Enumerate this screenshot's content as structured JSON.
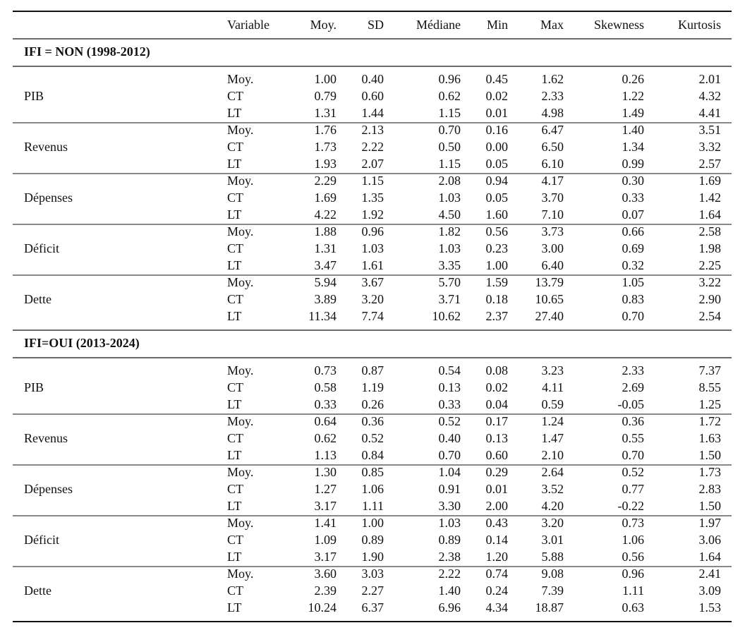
{
  "table": {
    "columns": [
      "Variable",
      "Moy.",
      "SD",
      "Médiane",
      "Min",
      "Max",
      "Skewness",
      "Kurtosis"
    ],
    "sections": [
      {
        "title": "IFI = NON (1998-2012)",
        "groups": [
          {
            "name": "PIB",
            "rows": [
              {
                "label": "Moy.",
                "values": [
                  "1.00",
                  "0.40",
                  "0.96",
                  "0.45",
                  "1.62",
                  "0.26",
                  "2.01"
                ]
              },
              {
                "label": "CT",
                "values": [
                  "0.79",
                  "0.60",
                  "0.62",
                  "0.02",
                  "2.33",
                  "1.22",
                  "4.32"
                ]
              },
              {
                "label": "LT",
                "values": [
                  "1.31",
                  "1.44",
                  "1.15",
                  "0.01",
                  "4.98",
                  "1.49",
                  "4.41"
                ]
              }
            ]
          },
          {
            "name": "Revenus",
            "rows": [
              {
                "label": "Moy.",
                "values": [
                  "1.76",
                  "2.13",
                  "0.70",
                  "0.16",
                  "6.47",
                  "1.40",
                  "3.51"
                ]
              },
              {
                "label": "CT",
                "values": [
                  "1.73",
                  "2.22",
                  "0.50",
                  "0.00",
                  "6.50",
                  "1.34",
                  "3.32"
                ]
              },
              {
                "label": "LT",
                "values": [
                  "1.93",
                  "2.07",
                  "1.15",
                  "0.05",
                  "6.10",
                  "0.99",
                  "2.57"
                ]
              }
            ]
          },
          {
            "name": "Dépenses",
            "rows": [
              {
                "label": "Moy.",
                "values": [
                  "2.29",
                  "1.15",
                  "2.08",
                  "0.94",
                  "4.17",
                  "0.30",
                  "1.69"
                ]
              },
              {
                "label": "CT",
                "values": [
                  "1.69",
                  "1.35",
                  "1.03",
                  "0.05",
                  "3.70",
                  "0.33",
                  "1.42"
                ]
              },
              {
                "label": "LT",
                "values": [
                  "4.22",
                  "1.92",
                  "4.50",
                  "1.60",
                  "7.10",
                  "0.07",
                  "1.64"
                ]
              }
            ]
          },
          {
            "name": "Déficit",
            "rows": [
              {
                "label": "Moy.",
                "values": [
                  "1.88",
                  "0.96",
                  "1.82",
                  "0.56",
                  "3.73",
                  "0.66",
                  "2.58"
                ]
              },
              {
                "label": "CT",
                "values": [
                  "1.31",
                  "1.03",
                  "1.03",
                  "0.23",
                  "3.00",
                  "0.69",
                  "1.98"
                ]
              },
              {
                "label": "LT",
                "values": [
                  "3.47",
                  "1.61",
                  "3.35",
                  "1.00",
                  "6.40",
                  "0.32",
                  "2.25"
                ]
              }
            ]
          },
          {
            "name": "Dette",
            "rows": [
              {
                "label": "Moy.",
                "values": [
                  "5.94",
                  "3.67",
                  "5.70",
                  "1.59",
                  "13.79",
                  "1.05",
                  "3.22"
                ]
              },
              {
                "label": "CT",
                "values": [
                  "3.89",
                  "3.20",
                  "3.71",
                  "0.18",
                  "10.65",
                  "0.83",
                  "2.90"
                ]
              },
              {
                "label": "LT",
                "values": [
                  "11.34",
                  "7.74",
                  "10.62",
                  "2.37",
                  "27.40",
                  "0.70",
                  "2.54"
                ]
              }
            ]
          }
        ]
      },
      {
        "title": "IFI=OUI (2013-2024)",
        "groups": [
          {
            "name": "PIB",
            "rows": [
              {
                "label": "Moy.",
                "values": [
                  "0.73",
                  "0.87",
                  "0.54",
                  "0.08",
                  "3.23",
                  "2.33",
                  "7.37"
                ]
              },
              {
                "label": "CT",
                "values": [
                  "0.58",
                  "1.19",
                  "0.13",
                  "0.02",
                  "4.11",
                  "2.69",
                  "8.55"
                ]
              },
              {
                "label": "LT",
                "values": [
                  "0.33",
                  "0.26",
                  "0.33",
                  "0.04",
                  "0.59",
                  "-0.05",
                  "1.25"
                ]
              }
            ]
          },
          {
            "name": "Revenus",
            "rows": [
              {
                "label": "Moy.",
                "values": [
                  "0.64",
                  "0.36",
                  "0.52",
                  "0.17",
                  "1.24",
                  "0.36",
                  "1.72"
                ]
              },
              {
                "label": "CT",
                "values": [
                  "0.62",
                  "0.52",
                  "0.40",
                  "0.13",
                  "1.47",
                  "0.55",
                  "1.63"
                ]
              },
              {
                "label": "LT",
                "values": [
                  "1.13",
                  "0.84",
                  "0.70",
                  "0.60",
                  "2.10",
                  "0.70",
                  "1.50"
                ]
              }
            ]
          },
          {
            "name": "Dépenses",
            "rows": [
              {
                "label": "Moy.",
                "values": [
                  "1.30",
                  "0.85",
                  "1.04",
                  "0.29",
                  "2.64",
                  "0.52",
                  "1.73"
                ]
              },
              {
                "label": "CT",
                "values": [
                  "1.27",
                  "1.06",
                  "0.91",
                  "0.01",
                  "3.52",
                  "0.77",
                  "2.83"
                ]
              },
              {
                "label": "LT",
                "values": [
                  "3.17",
                  "1.11",
                  "3.30",
                  "2.00",
                  "4.20",
                  "-0.22",
                  "1.50"
                ]
              }
            ]
          },
          {
            "name": "Déficit",
            "rows": [
              {
                "label": "Moy.",
                "values": [
                  "1.41",
                  "1.00",
                  "1.03",
                  "0.43",
                  "3.20",
                  "0.73",
                  "1.97"
                ]
              },
              {
                "label": "CT",
                "values": [
                  "1.09",
                  "0.89",
                  "0.89",
                  "0.14",
                  "3.01",
                  "1.06",
                  "3.06"
                ]
              },
              {
                "label": "LT",
                "values": [
                  "3.17",
                  "1.90",
                  "2.38",
                  "1.20",
                  "5.88",
                  "0.56",
                  "1.64"
                ]
              }
            ]
          },
          {
            "name": "Dette",
            "rows": [
              {
                "label": "Moy.",
                "values": [
                  "3.60",
                  "3.03",
                  "2.22",
                  "0.74",
                  "9.08",
                  "0.96",
                  "2.41"
                ]
              },
              {
                "label": "CT",
                "values": [
                  "2.39",
                  "2.27",
                  "1.40",
                  "0.24",
                  "7.39",
                  "1.11",
                  "3.09"
                ]
              },
              {
                "label": "LT",
                "values": [
                  "10.24",
                  "6.37",
                  "6.96",
                  "4.34",
                  "18.87",
                  "0.63",
                  "1.53"
                ]
              }
            ]
          }
        ]
      }
    ]
  }
}
